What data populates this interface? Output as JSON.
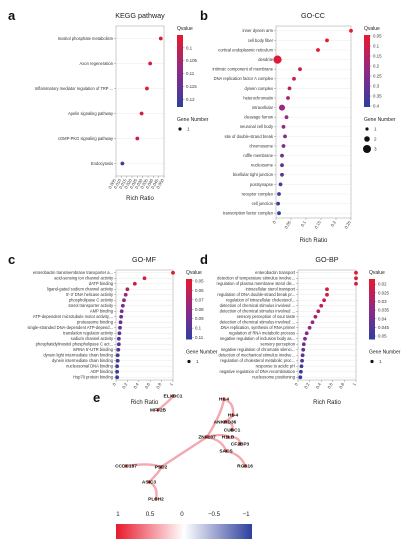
{
  "panels": [
    {
      "letter": "a",
      "title": "KEGG pathway",
      "xlabel": "Rich Ratio",
      "xticks": [
        "0.005",
        "0.010",
        "0.015",
        "0.020",
        "0.025",
        "0.030",
        "0.035",
        "0.040",
        "0.045",
        "0.050"
      ],
      "xlim": [
        0.005,
        0.05
      ],
      "terms": [
        "Inositol phosphate metabolism",
        "Axon regeneration",
        "Inflammatory mediator regulation of TRP ...",
        "Apelin signaling pathway",
        "cGMP-PKG signaling pathway",
        "Endocytosis"
      ],
      "rich_ratio": [
        0.047,
        0.037,
        0.034,
        0.029,
        0.025,
        0.011
      ],
      "qvalue": [
        0.097,
        0.097,
        0.098,
        0.099,
        0.1,
        0.12
      ],
      "qvalue_ticks": [
        "0.1",
        "0.105",
        "0.11",
        "0.115",
        "0.12"
      ],
      "qvalue_range": [
        0.095,
        0.123
      ],
      "gene_number_legend": [
        "1"
      ]
    },
    {
      "letter": "b",
      "title": "GO-CC",
      "xlabel": "Rich Ratio",
      "xticks": [
        "0",
        "0.05",
        "0.1",
        "0.15",
        "0.2",
        "0.25"
      ],
      "xlim": [
        0,
        0.25
      ],
      "terms": [
        "inner dynein arm",
        "cell body fiber",
        "cortical endoplasmic reticulum",
        "dendrite",
        "intrinsic component of membrane",
        "DNA replication factor A complex",
        "dynein complex",
        "heterochromatin",
        "intracellular",
        "cleavage furrow",
        "neuronal cell body",
        "site of double-strand break",
        "chromosome",
        "ruffle membrane",
        "nucleosome",
        "bicellular tight junction",
        "postsynapse",
        "receptor complex",
        "cell junction",
        "transcription factor complex"
      ],
      "rich_ratio": [
        0.25,
        0.17,
        0.14,
        0.005,
        0.08,
        0.06,
        0.045,
        0.04,
        0.02,
        0.035,
        0.025,
        0.03,
        0.025,
        0.02,
        0.02,
        0.02,
        0.015,
        0.01,
        0.007,
        0.01
      ],
      "gene_number": [
        1,
        1,
        1,
        3,
        1,
        1,
        1,
        1,
        2,
        1,
        1,
        1,
        1,
        1,
        1,
        1,
        1,
        1,
        1,
        1
      ],
      "qvalue": [
        0.05,
        0.05,
        0.05,
        0.07,
        0.1,
        0.1,
        0.14,
        0.18,
        0.2,
        0.2,
        0.22,
        0.25,
        0.27,
        0.28,
        0.3,
        0.33,
        0.35,
        0.37,
        0.38,
        0.4
      ],
      "qvalue_ticks": [
        "0.05",
        "0.1",
        "0.15",
        "0.2",
        "0.25",
        "0.3",
        "0.35",
        "0.4"
      ],
      "qvalue_range": [
        0.045,
        0.405
      ],
      "gene_number_legend": [
        "1",
        "2",
        "3"
      ]
    },
    {
      "letter": "c",
      "title": "GO-MF",
      "xlabel": "Rich Ratio",
      "xticks": [
        "0",
        "0.2",
        "0.4",
        "0.6",
        "0.8",
        "1"
      ],
      "xlim": [
        0,
        1
      ],
      "terms": [
        "enterobactin transmembrane transporter a...",
        "acid-sensing ion channel activity",
        "dATP binding",
        "ligand-gated sodium channel activity",
        "5'-3' DNA helicase activity",
        "phospholipase C activity",
        "sterol transporter activity",
        "AMP binding",
        "ATP-dependent microtubule motor activity,...",
        "proteasome binding",
        "single-stranded DNA-dependent ATP-depend...",
        "translation regulator activity",
        "sodium channel activity",
        "phosphatidylinositol phospholipase C act...",
        "mRNA 5'-UTR binding",
        "dynein light intermediate chain binding",
        "dynein intermediate chain binding",
        "nucleosomal DNA binding",
        "ADP binding",
        "Hsp70 protein binding"
      ],
      "rich_ratio": [
        1.0,
        0.5,
        0.33,
        0.2,
        0.17,
        0.14,
        0.12,
        0.1,
        0.09,
        0.08,
        0.07,
        0.06,
        0.05,
        0.05,
        0.04,
        0.03,
        0.03,
        0.02,
        0.02,
        0.02
      ],
      "qvalue": [
        0.05,
        0.053,
        0.057,
        0.065,
        0.075,
        0.08,
        0.085,
        0.088,
        0.09,
        0.092,
        0.094,
        0.096,
        0.098,
        0.1,
        0.102,
        0.104,
        0.105,
        0.107,
        0.108,
        0.11
      ],
      "qvalue_ticks": [
        "0.05",
        "0.06",
        "0.07",
        "0.08",
        "0.09",
        "0.1",
        "0.11"
      ],
      "qvalue_range": [
        0.048,
        0.112
      ],
      "gene_number_legend": [
        "1"
      ]
    },
    {
      "letter": "d",
      "title": "GO-BP",
      "xlabel": "Rich Ratio",
      "xticks": [
        "0",
        "0.2",
        "0.4",
        "0.6",
        "0.8",
        "1"
      ],
      "xlim": [
        0,
        1
      ],
      "terms": [
        "enterobactin transport",
        "detection of temperature stimulus involve...",
        "regulation of plasma membrane sterol dis...",
        "intracellular sterol transport",
        "regulation of DNA double-strand break pr...",
        "regulation of intracellular cholesterol...",
        "detection of chemical stimulus involved ...",
        "detection of chemical stimulus involved ...",
        "sensory perception of sour taste",
        "detection of chemical stimulus involved ...",
        "DNA replication, synthesis of RNA primer",
        "regulation of RNA metabolic process",
        "negative regulation of inclusion body as...",
        "sensory perception",
        "negative regulation of chromatin silenci...",
        "detection of mechanical stimulus involve...",
        "regulation of cholesterol metabolic proc...",
        "response to acidic pH",
        "negative regulation of DNA recombination",
        "nucleosome positioning"
      ],
      "rich_ratio": [
        1.0,
        1.0,
        1.0,
        0.5,
        0.5,
        0.45,
        0.4,
        0.35,
        0.3,
        0.25,
        0.2,
        0.15,
        0.12,
        0.1,
        0.09,
        0.08,
        0.07,
        0.06,
        0.05,
        0.04
      ],
      "qvalue": [
        0.018,
        0.02,
        0.02,
        0.021,
        0.022,
        0.024,
        0.026,
        0.028,
        0.03,
        0.032,
        0.034,
        0.036,
        0.038,
        0.04,
        0.042,
        0.044,
        0.046,
        0.048,
        0.05,
        0.051
      ],
      "qvalue_ticks": [
        "0.02",
        "0.025",
        "0.03",
        "0.035",
        "0.04",
        "0.045",
        "0.05"
      ],
      "qvalue_range": [
        0.017,
        0.052
      ],
      "gene_number_legend": [
        "1"
      ]
    }
  ],
  "legend_labels": {
    "qvalue": "Qvalue",
    "gene_number": "Gene Number"
  },
  "network": {
    "letter": "e",
    "nodes": [
      "ELXDC1",
      "MFF2B",
      "H1.4",
      "H1-4",
      "ANKRD36",
      "CUBC1",
      "ZNF107",
      "H1LB",
      "CF2BP3",
      "SACS",
      "RGS16",
      "CCDC187",
      "PSD2",
      "ASIC3",
      "PLCH2"
    ],
    "edges": [
      [
        "ELXDC1",
        "MFF2B"
      ],
      [
        "H1.4",
        "H1-4"
      ],
      [
        "H1-4",
        "ANKRD36"
      ],
      [
        "ANKRD36",
        "CUBC1"
      ],
      [
        "ZNF107",
        "H1LB"
      ],
      [
        "H1LB",
        "CF2BP3"
      ],
      [
        "ZNF107",
        "SACS"
      ],
      [
        "SACS",
        "RGS16"
      ],
      [
        "H1.4",
        "ZNF107"
      ],
      [
        "CCDC187",
        "PSD2"
      ],
      [
        "PSD2",
        "ASIC3"
      ],
      [
        "ASIC3",
        "PLCH2"
      ],
      [
        "PSD2",
        "ZNF107"
      ]
    ],
    "colorbar_ticks": [
      "1",
      "0.5",
      "0",
      "−0.5",
      "−1"
    ]
  },
  "colors": {
    "high": "#e8192c",
    "mid": "#8e2a86",
    "low": "#2e3f9e",
    "edge": "#f2a0a6"
  }
}
